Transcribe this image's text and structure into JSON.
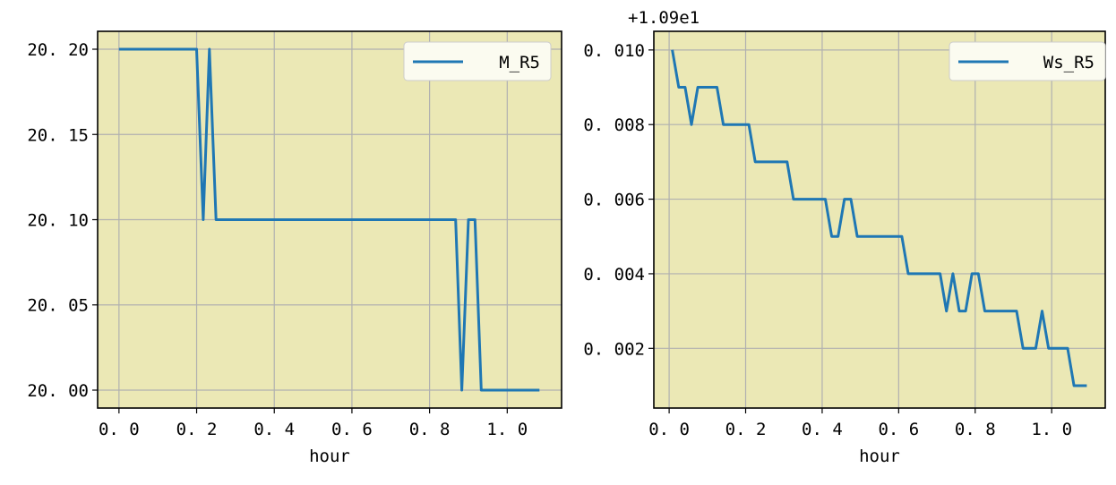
{
  "chart_data": [
    {
      "type": "line",
      "xlabel": "hour",
      "ylabel": "",
      "xlim": [
        -0.055,
        1.14
      ],
      "ylim": [
        19.9895,
        20.2105
      ],
      "xticks": [
        "0.0",
        "0.2",
        "0.4",
        "0.6",
        "0.8",
        "1.0"
      ],
      "yticks": [
        "20.00",
        "20.05",
        "20.10",
        "20.15",
        "20.20"
      ],
      "grid": true,
      "legend": "top-right",
      "background": "#ebe8b5",
      "series": [
        {
          "name": "M_R5",
          "color": "#1f77b4",
          "x": [
            0.0,
            0.2,
            0.217,
            0.233,
            0.25,
            0.867,
            0.883,
            0.9,
            0.917,
            0.933,
            1.083
          ],
          "y": [
            20.2,
            20.2,
            20.1,
            20.2,
            20.1,
            20.1,
            20.0,
            20.1,
            20.1,
            20.0,
            20.0
          ]
        }
      ]
    },
    {
      "type": "line",
      "xlabel": "hour",
      "ylabel": "",
      "offset_text": "+1.09e1",
      "xlim": [
        -0.04,
        1.14
      ],
      "ylim": [
        0.0004,
        0.0105
      ],
      "xticks": [
        "0.0",
        "0.2",
        "0.4",
        "0.6",
        "0.8",
        "1.0"
      ],
      "yticks": [
        "0.002",
        "0.004",
        "0.006",
        "0.008",
        "0.010"
      ],
      "grid": true,
      "legend": "top-right",
      "background": "#ebe8b5",
      "series": [
        {
          "name": "Ws_R5",
          "color": "#1f77b4",
          "x": [
            0.0083,
            0.025,
            0.0417,
            0.0583,
            0.075,
            0.0917,
            0.1083,
            0.125,
            0.1417,
            0.1583,
            0.175,
            0.1917,
            0.2083,
            0.225,
            0.2417,
            0.2583,
            0.275,
            0.2917,
            0.3083,
            0.325,
            0.3417,
            0.3583,
            0.375,
            0.3917,
            0.4083,
            0.425,
            0.4417,
            0.4583,
            0.475,
            0.4917,
            0.5083,
            0.525,
            0.5417,
            0.5583,
            0.575,
            0.5917,
            0.6083,
            0.625,
            0.6417,
            0.6583,
            0.675,
            0.6917,
            0.7083,
            0.725,
            0.7417,
            0.7583,
            0.775,
            0.7917,
            0.8083,
            0.825,
            0.8417,
            0.8583,
            0.875,
            0.8917,
            0.9083,
            0.925,
            0.9417,
            0.9583,
            0.975,
            0.9917,
            1.0083,
            1.025,
            1.0417,
            1.0583,
            1.075,
            1.0917
          ],
          "y": [
            0.01,
            0.009,
            0.009,
            0.008,
            0.009,
            0.009,
            0.009,
            0.009,
            0.008,
            0.008,
            0.008,
            0.008,
            0.008,
            0.007,
            0.007,
            0.007,
            0.007,
            0.007,
            0.007,
            0.006,
            0.006,
            0.006,
            0.006,
            0.006,
            0.006,
            0.005,
            0.005,
            0.006,
            0.006,
            0.005,
            0.005,
            0.005,
            0.005,
            0.005,
            0.005,
            0.005,
            0.005,
            0.004,
            0.004,
            0.004,
            0.004,
            0.004,
            0.004,
            0.003,
            0.004,
            0.003,
            0.003,
            0.004,
            0.004,
            0.003,
            0.003,
            0.003,
            0.003,
            0.003,
            0.003,
            0.002,
            0.002,
            0.002,
            0.003,
            0.002,
            0.002,
            0.002,
            0.002,
            0.001,
            0.001,
            0.001
          ]
        }
      ]
    }
  ]
}
